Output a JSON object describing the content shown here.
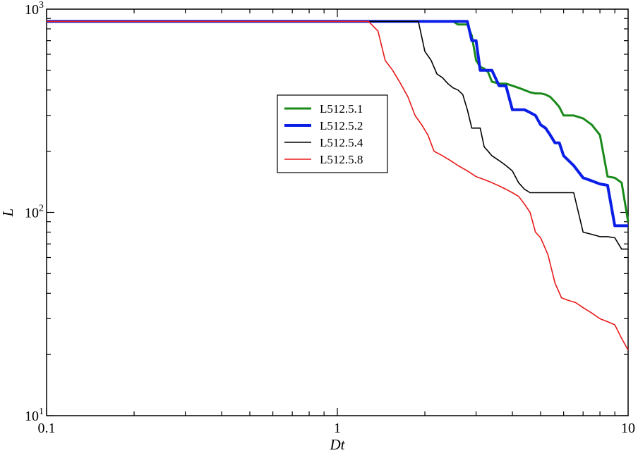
{
  "chart_data": {
    "type": "line",
    "xlabel": "Dt",
    "ylabel": "L",
    "x_scale": "log",
    "y_scale": "log",
    "xlim": [
      0.1,
      10
    ],
    "ylim": [
      10,
      1000
    ],
    "x_ticks": [
      "0.1",
      "1",
      "10"
    ],
    "y_ticks": [
      {
        "base": "10",
        "exp": "1"
      },
      {
        "base": "10",
        "exp": "2"
      },
      {
        "base": "10",
        "exp": "3"
      }
    ],
    "grid": false,
    "legend_position": "center",
    "series": [
      {
        "name": "L512.5.1",
        "color": "#1a8a1a",
        "x": [
          0.1,
          1.0,
          2.0,
          2.5,
          2.6,
          2.7,
          2.8,
          2.9,
          3.0,
          3.1,
          3.2,
          3.3,
          3.4,
          3.6,
          3.8,
          4.0,
          4.2,
          4.4,
          4.6,
          4.8,
          5.0,
          5.2,
          5.4,
          5.6,
          5.8,
          6.0,
          6.5,
          7.0,
          7.5,
          8.0,
          8.5,
          9.0,
          9.5,
          10.0
        ],
        "y": [
          870,
          870,
          870,
          870,
          840,
          840,
          840,
          740,
          560,
          520,
          510,
          490,
          440,
          430,
          430,
          420,
          410,
          400,
          390,
          385,
          385,
          380,
          370,
          350,
          330,
          300,
          300,
          290,
          270,
          240,
          150,
          148,
          140,
          90
        ]
      },
      {
        "name": "L512.5.2",
        "color": "#0a1ee6",
        "x": [
          0.1,
          1.0,
          2.0,
          2.5,
          2.6,
          2.7,
          2.8,
          2.9,
          3.0,
          3.1,
          3.2,
          3.3,
          3.4,
          3.6,
          3.8,
          4.0,
          4.2,
          4.4,
          4.6,
          4.8,
          5.0,
          5.2,
          5.4,
          5.6,
          5.8,
          6.0,
          6.5,
          7.0,
          7.5,
          8.0,
          8.5,
          9.0,
          9.5,
          10.0
        ],
        "y": [
          870,
          870,
          870,
          870,
          870,
          870,
          870,
          700,
          700,
          500,
          500,
          500,
          500,
          420,
          420,
          320,
          320,
          320,
          310,
          300,
          270,
          260,
          240,
          220,
          220,
          190,
          170,
          148,
          143,
          138,
          136,
          86,
          86,
          86
        ]
      },
      {
        "name": "L512.5.4",
        "color": "#000000",
        "x": [
          0.1,
          1.0,
          1.5,
          1.8,
          1.9,
          2.0,
          2.1,
          2.2,
          2.3,
          2.4,
          2.5,
          2.6,
          2.7,
          2.8,
          2.9,
          3.0,
          3.1,
          3.2,
          3.3,
          3.4,
          3.6,
          3.8,
          4.0,
          4.2,
          4.4,
          4.6,
          4.8,
          5.0,
          5.5,
          6.0,
          6.5,
          7.0,
          7.5,
          8.0,
          8.5,
          9.0,
          9.5,
          10.0
        ],
        "y": [
          870,
          870,
          870,
          870,
          870,
          620,
          560,
          480,
          460,
          430,
          410,
          400,
          380,
          320,
          260,
          260,
          260,
          210,
          200,
          190,
          180,
          170,
          160,
          140,
          130,
          125,
          125,
          125,
          125,
          125,
          125,
          80,
          78,
          76,
          76,
          75,
          66,
          66
        ]
      },
      {
        "name": "L512.5.8",
        "color": "#e81a1a",
        "x": [
          0.1,
          1.0,
          1.28,
          1.38,
          1.46,
          1.55,
          1.65,
          1.75,
          1.85,
          1.95,
          2.05,
          2.15,
          2.3,
          2.45,
          2.6,
          2.8,
          3.0,
          3.2,
          3.4,
          3.6,
          3.8,
          4.0,
          4.2,
          4.4,
          4.6,
          4.8,
          5.0,
          5.3,
          5.6,
          5.9,
          6.2,
          6.6,
          7.0,
          7.5,
          8.0,
          8.5,
          9.0,
          9.5,
          10.0
        ],
        "y": [
          870,
          870,
          870,
          780,
          560,
          500,
          430,
          370,
          300,
          270,
          240,
          200,
          190,
          180,
          170,
          160,
          150,
          145,
          140,
          135,
          130,
          125,
          120,
          110,
          100,
          80,
          75,
          62,
          45,
          38,
          37,
          36,
          34,
          32,
          30,
          29,
          28,
          24,
          21
        ]
      }
    ]
  }
}
